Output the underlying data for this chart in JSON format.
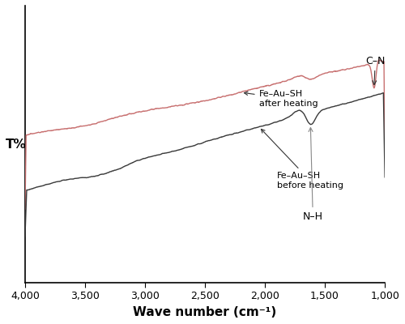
{
  "xlabel": "Wave number (cm⁻¹)",
  "ylabel": "T%",
  "xlim": [
    4000,
    1000
  ],
  "xticks": [
    4000,
    3500,
    3000,
    2500,
    2000,
    1500,
    1000
  ],
  "xtick_labels": [
    "4,000",
    "3,500",
    "3,000",
    "2,500",
    "2,000",
    "1,500",
    "1,000"
  ],
  "label_after": "Fe–Au–SH\nafter heating",
  "label_before": "Fe–Au–SH\nbefore heating",
  "annotation_nh": "N–H",
  "annotation_cn": "C–N",
  "after_color": "#c87070",
  "before_color": "#3a3a3a"
}
